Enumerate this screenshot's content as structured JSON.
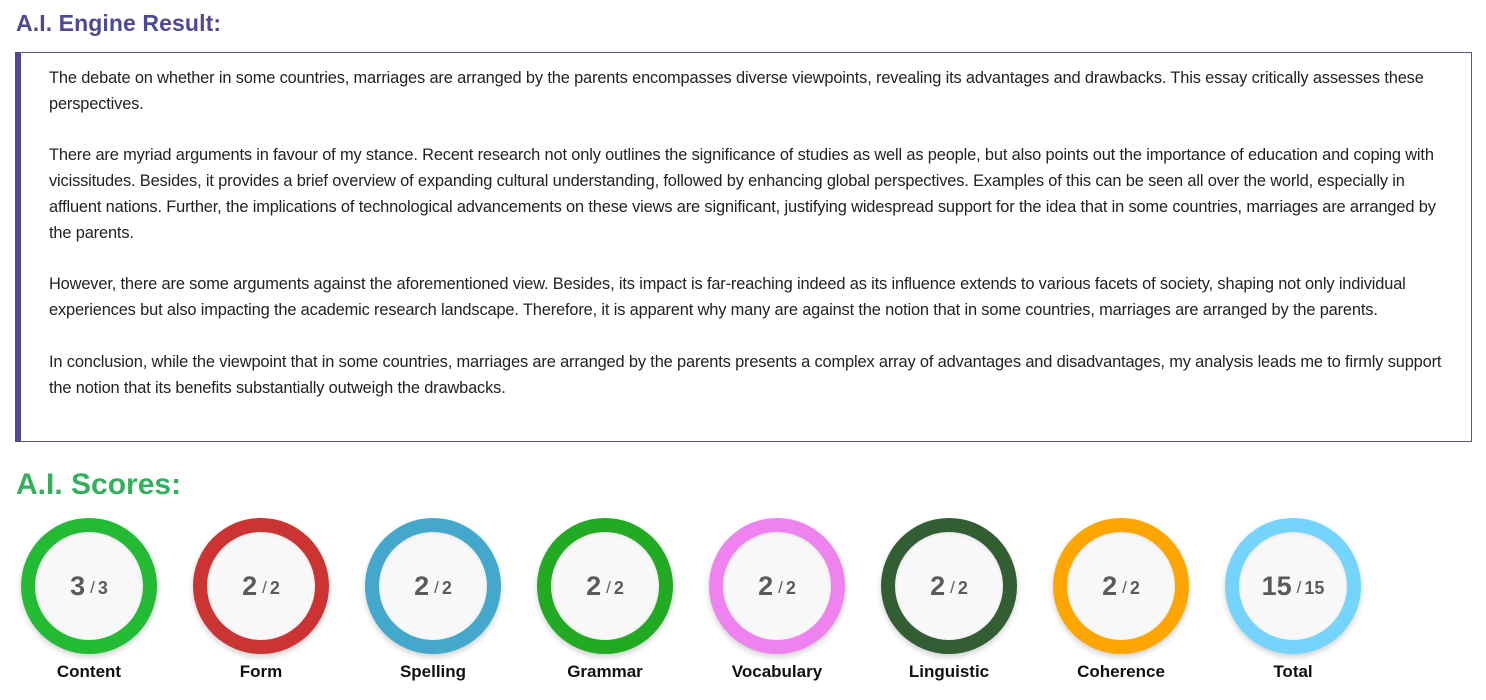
{
  "engine": {
    "title": "A.I. Engine Result:",
    "title_color": "#4f4894",
    "paragraphs": [
      "The debate on whether in some countries, marriages are arranged by the parents encompasses diverse viewpoints, revealing its advantages and drawbacks. This essay critically assesses these perspectives.",
      "There are myriad arguments in favour of my stance. Recent research not only outlines the significance of studies as well as people, but also points out the importance of education and coping with vicissitudes. Besides, it provides a brief overview of expanding cultural understanding, followed by enhancing global perspectives. Examples of this can be seen all over the world, especially in affluent nations. Further, the implications of technological advancements on these views are significant, justifying widespread support for the idea that in some countries, marriages are arranged by the parents.",
      "However, there are some arguments against the aforementioned view. Besides, its impact is far-reaching indeed as its influence extends to various facets of society, shaping not only individual experiences but also impacting the academic research landscape. Therefore, it is apparent why many are against the notion that in some countries, marriages are arranged by the parents.",
      "In conclusion, while the viewpoint that in some countries, marriages are arranged by the parents presents a complex array of advantages and disadvantages, my analysis leads me to firmly support the notion that its benefits substantially outweigh the drawbacks."
    ]
  },
  "scores": {
    "title": "A.I. Scores:",
    "title_color": "#34b05d",
    "separator": "/",
    "items": [
      {
        "label": "Content",
        "value": "3",
        "max": "3",
        "color": "#22bb33"
      },
      {
        "label": "Form",
        "value": "2",
        "max": "2",
        "color": "#cc3333"
      },
      {
        "label": "Spelling",
        "value": "2",
        "max": "2",
        "color": "#44a8cc"
      },
      {
        "label": "Grammar",
        "value": "2",
        "max": "2",
        "color": "#22aa22"
      },
      {
        "label": "Vocabulary",
        "value": "2",
        "max": "2",
        "color": "#ee82ee"
      },
      {
        "label": "Linguistic",
        "value": "2",
        "max": "2",
        "color": "#335e33"
      },
      {
        "label": "Coherence",
        "value": "2",
        "max": "2",
        "color": "#ffa500"
      },
      {
        "label": "Total",
        "value": "15",
        "max": "15",
        "color": "#74d4fb"
      }
    ]
  }
}
